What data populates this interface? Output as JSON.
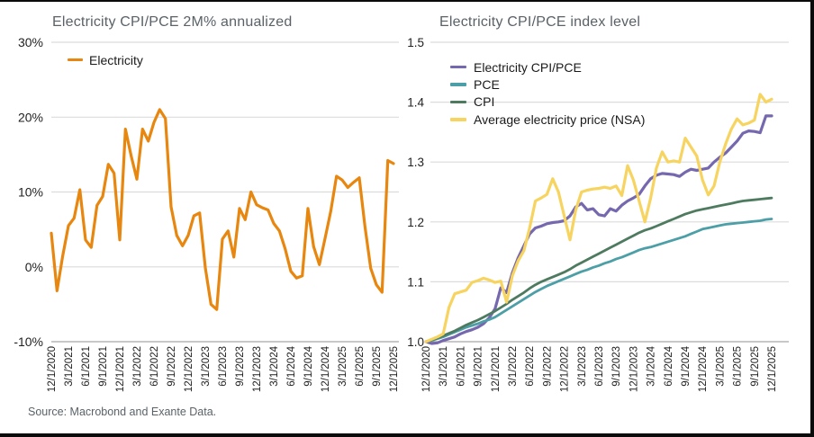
{
  "source_note": "Source: Macrobond and Exante Data.",
  "style": {
    "background": "#ffffff",
    "frame_border": "#0a0a0a",
    "title_color": "#5a6268",
    "axis_text": "#1f1f1f",
    "gridline": "#dcdcdc",
    "axis_baseline": "#a8a8a8"
  },
  "chart_data": [
    {
      "type": "line",
      "title": "Electricity CPI/PCE 2M% annualized",
      "xlabel": "",
      "ylabel": "",
      "unit": "percent",
      "ylim": [
        -10,
        30
      ],
      "grid": "horizontal",
      "legend_position": "top-left",
      "yticks": [
        {
          "label": "30%",
          "value": 30
        },
        {
          "label": "20%",
          "value": 20
        },
        {
          "label": "10%",
          "value": 10
        },
        {
          "label": "0%",
          "value": 0
        },
        {
          "label": "-10%",
          "value": -10
        }
      ],
      "x_start": "12/1/2020",
      "x_end": "12/1/2025",
      "x_frequency": "monthly",
      "x_tick_labels": [
        "12/1/2020",
        "3/1/2021",
        "6/1/2021",
        "9/1/2021",
        "12/1/2021",
        "3/1/2022",
        "6/1/2022",
        "9/1/2022",
        "12/1/2022",
        "3/1/2023",
        "6/1/2023",
        "9/1/2023",
        "12/1/2023",
        "3/1/2024",
        "6/1/2024",
        "9/1/2024",
        "12/1/2024",
        "3/1/2025",
        "6/1/2025",
        "9/1/2025",
        "12/1/2025"
      ],
      "series": [
        {
          "name": "Electricity",
          "color": "#e8870f",
          "values": [
            4.5,
            -3.2,
            1.5,
            5.5,
            6.5,
            10.3,
            3.6,
            2.6,
            8.2,
            9.4,
            13.7,
            12.5,
            3.6,
            18.4,
            14.8,
            11.7,
            18.4,
            16.8,
            19.3,
            21.0,
            19.8,
            8.0,
            4.2,
            2.8,
            4.2,
            6.8,
            7.2,
            -0.1,
            -5.0,
            -5.7,
            3.7,
            4.8,
            1.3,
            7.8,
            6.3,
            10.0,
            8.3,
            7.9,
            7.6,
            5.8,
            4.8,
            2.4,
            -0.6,
            -1.5,
            -1.2,
            7.8,
            2.7,
            0.3,
            3.8,
            7.4,
            12.1,
            11.6,
            10.6,
            11.3,
            11.9,
            5.4,
            -0.2,
            -2.4,
            -3.4,
            14.2,
            13.8
          ]
        }
      ]
    },
    {
      "type": "line",
      "title": "Electricity CPI/PCE index level",
      "xlabel": "",
      "ylabel": "",
      "unit": "index (12/1/2020 = 1.0)",
      "ylim": [
        1.0,
        1.5
      ],
      "grid": "horizontal",
      "legend_position": "top-left",
      "yticks": [
        {
          "label": "1.5",
          "value": 1.5
        },
        {
          "label": "1.4",
          "value": 1.4
        },
        {
          "label": "1.3",
          "value": 1.3
        },
        {
          "label": "1.2",
          "value": 1.2
        },
        {
          "label": "1.1",
          "value": 1.1
        },
        {
          "label": "1.0",
          "value": 1.0
        }
      ],
      "x_start": "12/1/2020",
      "x_end": "12/1/2025",
      "x_frequency": "monthly",
      "x_tick_labels": [
        "12/1/2020",
        "3/1/2021",
        "6/1/2021",
        "9/1/2021",
        "12/1/2021",
        "3/1/2022",
        "6/1/2022",
        "9/1/2022",
        "12/1/2022",
        "3/1/2023",
        "6/1/2023",
        "9/1/2023",
        "12/1/2023",
        "3/1/2024",
        "6/1/2024",
        "9/1/2024",
        "12/1/2024",
        "3/1/2025",
        "6/1/2025",
        "9/1/2025",
        "12/1/2025"
      ],
      "series": [
        {
          "name": "Electricity CPI/PCE",
          "color": "#7668ae",
          "values": [
            1.0,
            0.997,
            0.998,
            1.002,
            1.005,
            1.008,
            1.013,
            1.017,
            1.02,
            1.024,
            1.03,
            1.04,
            1.055,
            1.09,
            1.082,
            1.115,
            1.14,
            1.16,
            1.18,
            1.19,
            1.193,
            1.197,
            1.199,
            1.2,
            1.202,
            1.21,
            1.225,
            1.231,
            1.22,
            1.222,
            1.212,
            1.21,
            1.222,
            1.218,
            1.228,
            1.235,
            1.24,
            1.246,
            1.26,
            1.272,
            1.278,
            1.281,
            1.28,
            1.279,
            1.276,
            1.283,
            1.288,
            1.286,
            1.288,
            1.29,
            1.3,
            1.308,
            1.315,
            1.325,
            1.335,
            1.348,
            1.352,
            1.351,
            1.349,
            1.377,
            1.377
          ]
        },
        {
          "name": "PCE",
          "color": "#4c9fa6",
          "values": [
            1.0,
            1.002,
            1.005,
            1.008,
            1.012,
            1.016,
            1.02,
            1.024,
            1.027,
            1.03,
            1.034,
            1.037,
            1.041,
            1.047,
            1.053,
            1.059,
            1.065,
            1.071,
            1.077,
            1.083,
            1.088,
            1.093,
            1.097,
            1.101,
            1.105,
            1.109,
            1.113,
            1.117,
            1.12,
            1.124,
            1.127,
            1.131,
            1.134,
            1.138,
            1.141,
            1.145,
            1.149,
            1.153,
            1.156,
            1.158,
            1.161,
            1.164,
            1.167,
            1.17,
            1.173,
            1.176,
            1.18,
            1.184,
            1.188,
            1.19,
            1.192,
            1.194,
            1.196,
            1.197,
            1.198,
            1.199,
            1.2,
            1.201,
            1.202,
            1.204,
            1.205
          ]
        },
        {
          "name": "CPI",
          "color": "#4e7b60",
          "values": [
            1.0,
            1.003,
            1.006,
            1.01,
            1.014,
            1.018,
            1.023,
            1.028,
            1.032,
            1.036,
            1.041,
            1.046,
            1.051,
            1.057,
            1.063,
            1.07,
            1.076,
            1.082,
            1.089,
            1.095,
            1.1,
            1.104,
            1.108,
            1.112,
            1.116,
            1.121,
            1.127,
            1.132,
            1.137,
            1.142,
            1.147,
            1.152,
            1.157,
            1.162,
            1.167,
            1.172,
            1.177,
            1.182,
            1.186,
            1.189,
            1.193,
            1.197,
            1.201,
            1.205,
            1.209,
            1.213,
            1.216,
            1.219,
            1.221,
            1.223,
            1.225,
            1.227,
            1.229,
            1.231,
            1.233,
            1.235,
            1.236,
            1.237,
            1.238,
            1.239,
            1.24
          ]
        },
        {
          "name": "Average electricity price (NSA)",
          "color": "#f7d45f",
          "values": [
            1.0,
            1.004,
            1.008,
            1.013,
            1.057,
            1.08,
            1.083,
            1.086,
            1.099,
            1.102,
            1.106,
            1.103,
            1.099,
            1.101,
            1.066,
            1.11,
            1.135,
            1.152,
            1.19,
            1.235,
            1.24,
            1.246,
            1.272,
            1.25,
            1.21,
            1.17,
            1.22,
            1.25,
            1.253,
            1.255,
            1.256,
            1.258,
            1.256,
            1.26,
            1.244,
            1.294,
            1.27,
            1.235,
            1.2,
            1.24,
            1.29,
            1.317,
            1.3,
            1.302,
            1.3,
            1.34,
            1.325,
            1.31,
            1.27,
            1.245,
            1.26,
            1.3,
            1.33,
            1.355,
            1.372,
            1.362,
            1.365,
            1.37,
            1.413,
            1.4,
            1.405
          ]
        }
      ]
    }
  ]
}
